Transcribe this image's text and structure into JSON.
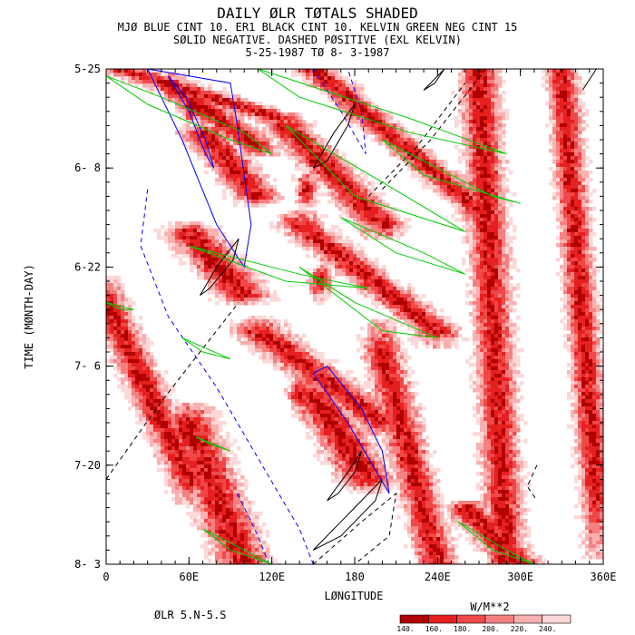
{
  "chart_data": {
    "type": "heatmap",
    "title": "DAILY ØLR TØTALS SHADED",
    "subtitle_lines": [
      "MJØ BLUE CINT 10. ER1 BLACK CINT 10. KELVIN GREEN NEG CINT 15",
      "SØLID NEGATIVE. DASHED PØSITIVE (EXL KELVIN)",
      "5-25-1987 TØ  8- 3-1987"
    ],
    "xlabel": "LØNGITUDE",
    "ylabel": "TIME (MØNTH-DAY)",
    "xlim": [
      0,
      360
    ],
    "x_ticks": [
      {
        "value": 0,
        "label": "0"
      },
      {
        "value": 60,
        "label": "60E"
      },
      {
        "value": 120,
        "label": "120E"
      },
      {
        "value": 180,
        "label": "180"
      },
      {
        "value": 240,
        "label": "240E"
      },
      {
        "value": 300,
        "label": "300E"
      },
      {
        "value": 360,
        "label": "360E"
      }
    ],
    "y_ticks": [
      {
        "value": 0,
        "label": "5-25"
      },
      {
        "value": 14,
        "label": "6- 8"
      },
      {
        "value": 28,
        "label": "6-22"
      },
      {
        "value": 42,
        "label": "7- 6"
      },
      {
        "value": 56,
        "label": "7-20"
      },
      {
        "value": 70,
        "label": "8- 3"
      }
    ],
    "ylim_days": [
      0,
      70
    ],
    "bottom_left_label": "ØLR 5.N-5.S",
    "colorbar": {
      "unit": "W/M**2",
      "levels": [
        "140.",
        "160.",
        "180.",
        "200.",
        "220.",
        "240."
      ],
      "colors": [
        "#b00000",
        "#e62020",
        "#f04848",
        "#f58080",
        "#f9b0b0",
        "#fcd8d8"
      ]
    },
    "contour_colors": {
      "mjo": "#0000ff",
      "er1": "#000000",
      "kelvin": "#00cc00"
    },
    "convective_bands": [
      {
        "lon0": 10,
        "lon1": 125,
        "t0": 0,
        "t1": 7,
        "w": 14
      },
      {
        "lon0": 45,
        "lon1": 110,
        "t0": 2,
        "t1": 11,
        "w": 12
      },
      {
        "lon0": 150,
        "lon1": 270,
        "t0": 0,
        "t1": 20,
        "w": 10
      },
      {
        "lon0": 70,
        "lon1": 110,
        "t0": 9,
        "t1": 18,
        "w": 12
      },
      {
        "lon0": 60,
        "lon1": 100,
        "t0": 23,
        "t1": 32,
        "w": 14
      },
      {
        "lon0": 130,
        "lon1": 200,
        "t0": 8,
        "t1": 22,
        "w": 12
      },
      {
        "lon0": 140,
        "lon1": 240,
        "t0": 22,
        "t1": 37,
        "w": 12
      },
      {
        "lon0": 110,
        "lon1": 200,
        "t0": 37,
        "t1": 50,
        "w": 14
      },
      {
        "lon0": 150,
        "lon1": 190,
        "t0": 46,
        "t1": 58,
        "w": 14
      },
      {
        "lon0": 60,
        "lon1": 100,
        "t0": 50,
        "t1": 70,
        "w": 14
      },
      {
        "lon0": 0,
        "lon1": 60,
        "t0": 33,
        "t1": 58,
        "w": 10
      },
      {
        "lon0": 260,
        "lon1": 300,
        "t0": 62,
        "t1": 70,
        "w": 12
      },
      {
        "lon0": 270,
        "lon1": 290,
        "t0": 0,
        "t1": 70,
        "w": 10
      },
      {
        "lon0": 330,
        "lon1": 355,
        "t0": 0,
        "t1": 60,
        "w": 8
      },
      {
        "lon0": 200,
        "lon1": 240,
        "t0": 40,
        "t1": 70,
        "w": 10
      }
    ],
    "cores": [
      {
        "lon": 62,
        "t": 5,
        "level": 0
      },
      {
        "lon": 75,
        "t": 27,
        "level": 0
      },
      {
        "lon": 85,
        "t": 29,
        "level": 1
      },
      {
        "lon": 170,
        "t": 52,
        "level": 0
      },
      {
        "lon": 160,
        "t": 44,
        "level": 1
      },
      {
        "lon": 155,
        "t": 30,
        "level": 1
      },
      {
        "lon": 145,
        "t": 17,
        "level": 1
      },
      {
        "lon": 285,
        "t": 67,
        "level": 0
      },
      {
        "lon": 180,
        "t": 5,
        "level": 1
      },
      {
        "lon": 75,
        "t": 59,
        "level": 1
      },
      {
        "lon": 140,
        "t": 46,
        "level": 1
      }
    ],
    "mjo_contours": [
      {
        "points": [
          [
            45,
            1
          ],
          [
            58,
            4
          ],
          [
            72,
            10
          ],
          [
            78,
            14
          ],
          [
            72,
            12
          ],
          [
            60,
            6
          ],
          [
            45,
            1
          ]
        ],
        "dashed": false
      },
      {
        "points": [
          [
            30,
            0
          ],
          [
            55,
            10
          ],
          [
            80,
            22
          ],
          [
            100,
            28
          ],
          [
            105,
            22
          ],
          [
            95,
            8
          ],
          [
            90,
            2
          ],
          [
            30,
            0
          ]
        ],
        "dashed": false
      },
      {
        "points": [
          [
            150,
            43
          ],
          [
            175,
            50
          ],
          [
            205,
            60
          ],
          [
            200,
            54
          ],
          [
            185,
            48
          ],
          [
            160,
            42
          ],
          [
            150,
            43
          ]
        ],
        "dashed": false
      },
      {
        "points": [
          [
            30,
            17
          ],
          [
            25,
            25
          ],
          [
            45,
            35
          ],
          [
            80,
            45
          ],
          [
            110,
            55
          ],
          [
            140,
            65
          ],
          [
            150,
            70
          ]
        ],
        "dashed": true
      },
      {
        "points": [
          [
            150,
            0
          ],
          [
            170,
            6
          ],
          [
            188,
            12
          ],
          [
            185,
            6
          ],
          [
            175,
            0
          ]
        ],
        "dashed": true
      },
      {
        "points": [
          [
            95,
            60
          ],
          [
            110,
            66
          ],
          [
            118,
            70
          ]
        ],
        "dashed": true
      }
    ],
    "er1_contours": [
      {
        "points": [
          [
            150,
            14
          ],
          [
            165,
            9
          ],
          [
            180,
            5
          ],
          [
            175,
            8
          ],
          [
            160,
            13
          ],
          [
            150,
            14
          ]
        ],
        "dashed": false
      },
      {
        "points": [
          [
            68,
            32
          ],
          [
            80,
            28
          ],
          [
            96,
            24
          ],
          [
            92,
            27
          ],
          [
            75,
            31
          ],
          [
            68,
            32
          ]
        ],
        "dashed": false
      },
      {
        "points": [
          [
            150,
            68
          ],
          [
            175,
            63
          ],
          [
            200,
            58
          ],
          [
            195,
            61
          ],
          [
            170,
            66
          ],
          [
            150,
            68
          ]
        ],
        "dashed": false
      },
      {
        "points": [
          [
            160,
            61
          ],
          [
            175,
            57
          ],
          [
            185,
            54
          ],
          [
            180,
            57
          ],
          [
            168,
            60
          ],
          [
            160,
            61
          ]
        ],
        "dashed": false
      },
      {
        "points": [
          [
            0,
            58
          ],
          [
            40,
            47
          ],
          [
            96,
            33
          ]
        ],
        "dashed": true
      },
      {
        "points": [
          [
            200,
            17
          ],
          [
            235,
            10
          ],
          [
            275,
            0
          ]
        ],
        "dashed": true
      },
      {
        "points": [
          [
            190,
            18
          ],
          [
            225,
            11
          ],
          [
            260,
            2
          ]
        ],
        "dashed": true
      },
      {
        "points": [
          [
            150,
            70
          ],
          [
            185,
            64
          ],
          [
            210,
            60
          ],
          [
            205,
            66
          ],
          [
            180,
            70
          ]
        ],
        "dashed": true
      },
      {
        "points": [
          [
            312,
            56
          ],
          [
            305,
            59
          ],
          [
            312,
            61
          ]
        ],
        "dashed": true
      },
      {
        "points": [
          [
            345,
            3
          ],
          [
            355,
            0
          ]
        ],
        "dashed": false
      },
      {
        "points": [
          [
            230,
            3
          ],
          [
            245,
            0
          ],
          [
            238,
            2
          ],
          [
            230,
            3
          ]
        ],
        "dashed": false
      }
    ],
    "kelvin_contours": [
      {
        "points": [
          [
            0,
            1
          ],
          [
            40,
            4
          ],
          [
            100,
            9
          ],
          [
            120,
            12
          ],
          [
            90,
            10
          ],
          [
            30,
            5
          ],
          [
            0,
            1
          ]
        ]
      },
      {
        "points": [
          [
            110,
            0
          ],
          [
            220,
            7
          ],
          [
            290,
            12
          ],
          [
            220,
            9
          ],
          [
            140,
            4
          ],
          [
            110,
            0
          ]
        ]
      },
      {
        "points": [
          [
            200,
            10
          ],
          [
            280,
            18
          ],
          [
            300,
            19
          ],
          [
            230,
            15
          ],
          [
            200,
            10
          ]
        ]
      },
      {
        "points": [
          [
            130,
            8
          ],
          [
            200,
            16
          ],
          [
            260,
            23
          ],
          [
            180,
            18
          ],
          [
            130,
            8
          ]
        ]
      },
      {
        "points": [
          [
            170,
            21
          ],
          [
            230,
            26
          ],
          [
            260,
            29
          ],
          [
            210,
            26
          ],
          [
            170,
            21
          ]
        ]
      },
      {
        "points": [
          [
            60,
            25
          ],
          [
            140,
            29
          ],
          [
            190,
            31
          ],
          [
            130,
            30
          ],
          [
            60,
            25
          ]
        ]
      },
      {
        "points": [
          [
            140,
            28
          ],
          [
            180,
            33
          ],
          [
            240,
            38
          ],
          [
            200,
            37
          ],
          [
            140,
            28
          ]
        ]
      },
      {
        "points": [
          [
            255,
            64
          ],
          [
            290,
            68
          ],
          [
            310,
            70
          ],
          [
            280,
            68
          ],
          [
            255,
            64
          ]
        ]
      },
      {
        "points": [
          [
            70,
            65
          ],
          [
            100,
            68
          ],
          [
            120,
            70
          ],
          [
            90,
            68
          ],
          [
            70,
            65
          ]
        ]
      },
      {
        "points": [
          [
            0,
            33
          ],
          [
            20,
            34
          ],
          [
            10,
            34
          ],
          [
            0,
            33
          ]
        ]
      },
      {
        "points": [
          [
            55,
            38
          ],
          [
            90,
            41
          ],
          [
            70,
            40
          ],
          [
            55,
            38
          ]
        ]
      },
      {
        "points": [
          [
            65,
            52
          ],
          [
            90,
            54
          ],
          [
            75,
            53
          ],
          [
            65,
            52
          ]
        ]
      }
    ]
  }
}
